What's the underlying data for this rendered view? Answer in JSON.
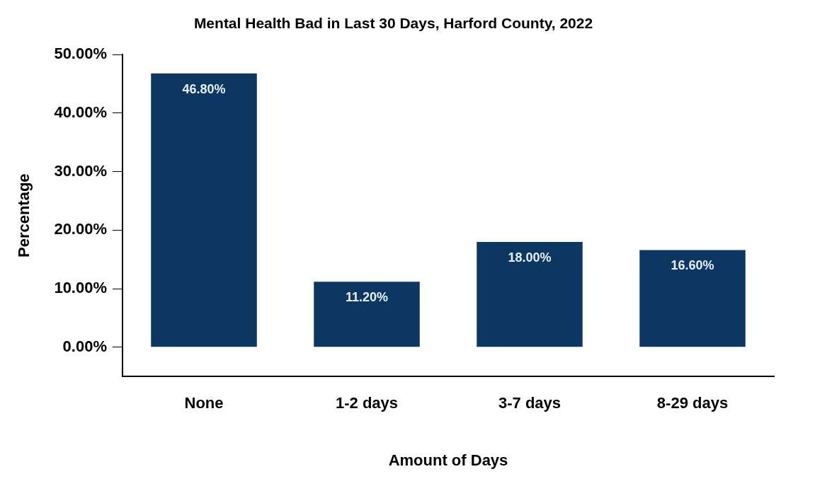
{
  "chart_data": {
    "type": "bar",
    "title": "Mental Health Bad in Last 30 Days, Harford County, 2022",
    "xlabel": "Amount of Days",
    "ylabel": "Percentage",
    "categories": [
      "None",
      "1-2 days",
      "3-7 days",
      "8-29 days"
    ],
    "values": [
      46.8,
      11.2,
      18,
      16.6
    ],
    "value_labels": [
      "46.80%",
      "11.20%",
      "18.00%",
      "16.60%"
    ],
    "color": "#0b3762",
    "ylim": [
      -5,
      50
    ],
    "yticks": [
      {
        "value": 0,
        "label": "0.00%"
      },
      {
        "value": 10,
        "label": "10.00%"
      },
      {
        "value": 20,
        "label": "20.00%"
      },
      {
        "value": 30,
        "label": "30.00%"
      },
      {
        "value": 40,
        "label": "40.00%"
      },
      {
        "value": 50,
        "label": "50.00%"
      }
    ],
    "grid": false,
    "legend": false
  }
}
